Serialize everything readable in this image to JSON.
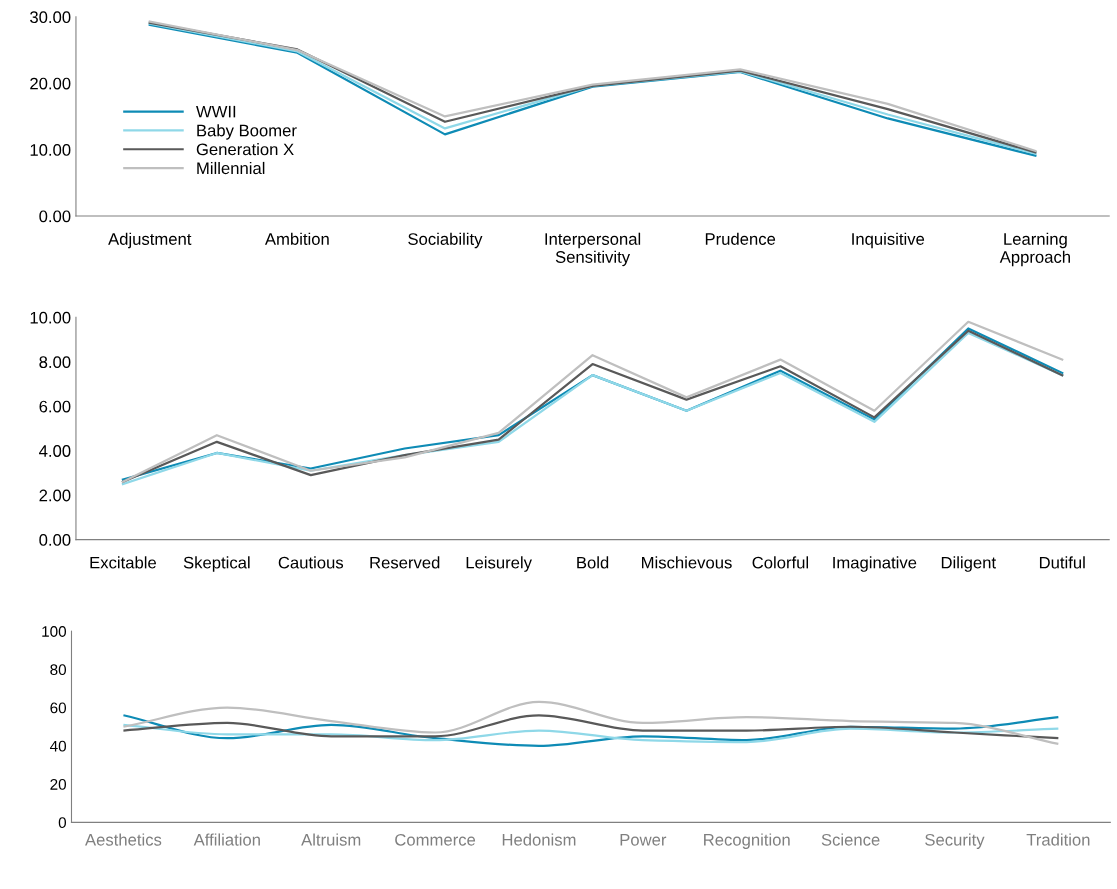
{
  "chart_data": [
    {
      "type": "line",
      "categories": [
        "Adjustment",
        "Ambition",
        "Sociability",
        "Interpersonal\nSensitivity",
        "Prudence",
        "Inquisitive",
        "Learning\nApproach"
      ],
      "ylim": [
        0,
        30
      ],
      "yticks": [
        {
          "value": 0,
          "label": "0.00"
        },
        {
          "value": 10,
          "label": "10.00"
        },
        {
          "value": 20,
          "label": "20.00"
        },
        {
          "value": 30,
          "label": "30.00"
        }
      ],
      "legend": "left",
      "grid": false,
      "marker": "none",
      "series": [
        {
          "name": "WWII",
          "color": "#0e8bb5",
          "values": [
            28.8,
            24.6,
            12.3,
            19.5,
            21.7,
            14.7,
            9.1
          ]
        },
        {
          "name": "Baby Boomer",
          "color": "#8fd8e8",
          "values": [
            29.0,
            24.8,
            13.2,
            19.6,
            21.8,
            15.3,
            9.4
          ]
        },
        {
          "name": "Generation X",
          "color": "#595959",
          "values": [
            29.1,
            25.1,
            14.2,
            19.6,
            21.9,
            16.1,
            9.6
          ]
        },
        {
          "name": "Millennial",
          "color": "#bfbfbf",
          "values": [
            29.3,
            25.0,
            15.0,
            19.8,
            22.1,
            16.9,
            9.8
          ]
        }
      ]
    },
    {
      "type": "line",
      "categories": [
        "Excitable",
        "Skeptical",
        "Cautious",
        "Reserved",
        "Leisurely",
        "Bold",
        "Mischievous",
        "Colorful",
        "Imaginative",
        "Diligent",
        "Dutiful"
      ],
      "ylim": [
        0,
        10
      ],
      "yticks": [
        {
          "value": 0,
          "label": "0.00"
        },
        {
          "value": 2,
          "label": "2.00"
        },
        {
          "value": 4,
          "label": "4.00"
        },
        {
          "value": 6,
          "label": "6.00"
        },
        {
          "value": 8,
          "label": "8.00"
        },
        {
          "value": 10,
          "label": "10.00"
        }
      ],
      "grid": false,
      "marker": "none",
      "series": [
        {
          "color": "#0e8bb5",
          "values": [
            2.7,
            3.9,
            3.2,
            4.1,
            4.7,
            7.4,
            5.8,
            7.6,
            5.4,
            9.5,
            7.5
          ]
        },
        {
          "color": "#8fd8e8",
          "values": [
            2.5,
            3.9,
            3.1,
            3.8,
            4.4,
            7.4,
            5.8,
            7.5,
            5.3,
            9.3,
            7.4
          ]
        },
        {
          "color": "#595959",
          "values": [
            2.6,
            4.4,
            2.9,
            3.8,
            4.5,
            7.9,
            6.3,
            7.8,
            5.5,
            9.4,
            7.4
          ]
        },
        {
          "color": "#bfbfbf",
          "values": [
            2.6,
            4.7,
            3.1,
            3.7,
            4.8,
            8.3,
            6.4,
            8.1,
            5.8,
            9.8,
            8.1
          ]
        }
      ]
    },
    {
      "type": "line",
      "categories": [
        "Aesthetics",
        "Affiliation",
        "Altruism",
        "Commerce",
        "Hedonism",
        "Power",
        "Recognition",
        "Science",
        "Security",
        "Tradition"
      ],
      "ylim": [
        0,
        100
      ],
      "yticks": [
        0,
        20,
        40,
        60,
        80,
        100
      ],
      "grid": false,
      "marker": "none",
      "series": [
        {
          "color": "#0e8bb5",
          "values": [
            56,
            44,
            51,
            44,
            40,
            45,
            43,
            50,
            49,
            55
          ]
        },
        {
          "color": "#8fd8e8",
          "values": [
            51,
            46,
            46,
            43,
            48,
            43,
            42,
            49,
            47,
            49
          ]
        },
        {
          "color": "#595959",
          "values": [
            48,
            52,
            45,
            45,
            56,
            48,
            48,
            50,
            47,
            44
          ]
        },
        {
          "color": "#bfbfbf",
          "values": [
            50,
            60,
            53,
            47,
            63,
            52,
            55,
            53,
            52,
            41
          ]
        }
      ]
    }
  ]
}
